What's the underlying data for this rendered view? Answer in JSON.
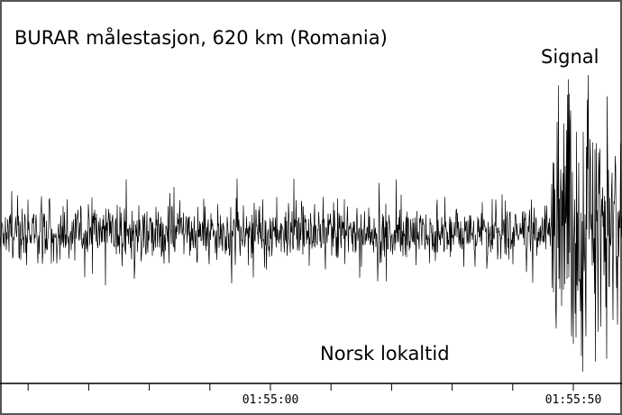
{
  "chart_data": {
    "type": "line",
    "title": "BURAR målestasjon, 620 km (Romania)",
    "annotation": "Signal",
    "xlabel": "Norsk lokaltid",
    "ylabel": "",
    "x_ticks": [
      "01:55:00",
      "01:55:50"
    ],
    "x_unit": "time (HH:MM:SS)",
    "grid": false,
    "legend": "none",
    "series": [
      {
        "description": "seismic waveform (relative amplitude, no scale shown)",
        "noise_segment": {
          "from": "start",
          "to": "01:55:45",
          "typical_amplitude": 0.25,
          "peak_amplitude": 0.55
        },
        "signal_segment": {
          "from": "01:55:47",
          "to": "end",
          "peak_amplitude": 1.0
        }
      }
    ],
    "colors": {
      "trace": "#000000",
      "frame": "#555555",
      "axis": "#000000"
    }
  }
}
